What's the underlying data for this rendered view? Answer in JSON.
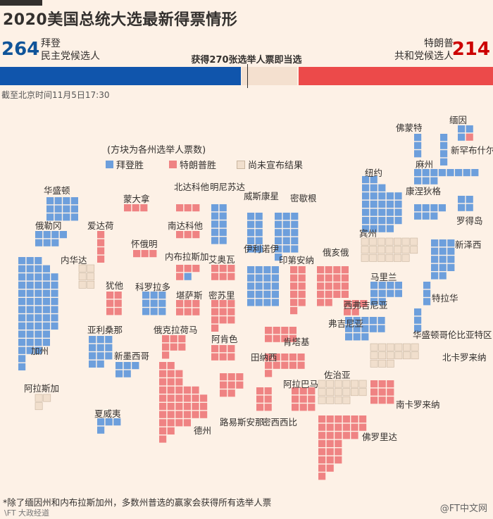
{
  "header": {
    "title": "2020美国总统大选最新得票情形",
    "biden_votes": "264",
    "biden_name": "拜登",
    "biden_party": "民主党候选人",
    "trump_votes": "214",
    "trump_name": "特朗普",
    "trump_party": "共和党候选人",
    "threshold": "获得270张选举人票即当选",
    "timestamp": "截至北京时间11月5日17:30"
  },
  "legend": {
    "note": "(方块为各州选举人票数)",
    "biden": "拜登胜",
    "trump": "特朗普胜",
    "undecided": "尚未宣布结果"
  },
  "colors": {
    "biden": "#6d9fdc",
    "trump": "#ef8383",
    "undecided": "#f1dfcd",
    "biden_bar": "#1055ac",
    "trump_bar": "#ec4a4a",
    "undecided_bar": "#f4e0cf"
  },
  "states": [
    {
      "name": "华盛顿",
      "votes": 12,
      "winner": "biden"
    },
    {
      "name": "俄勒冈",
      "votes": 7,
      "winner": "biden"
    },
    {
      "name": "加州",
      "votes": 55,
      "winner": "biden"
    },
    {
      "name": "内华达",
      "votes": 6,
      "winner": "undecided"
    },
    {
      "name": "爱达荷",
      "votes": 4,
      "winner": "trump"
    },
    {
      "name": "蒙大拿",
      "votes": 3,
      "winner": "trump"
    },
    {
      "name": "怀俄明",
      "votes": 3,
      "winner": "trump"
    },
    {
      "name": "犹他",
      "votes": 6,
      "winner": "trump"
    },
    {
      "name": "科罗拉多",
      "votes": 9,
      "winner": "biden"
    },
    {
      "name": "亚利桑那",
      "votes": 11,
      "winner": "biden"
    },
    {
      "name": "新墨西哥",
      "votes": 5,
      "winner": "biden"
    },
    {
      "name": "北达科他",
      "votes": 3,
      "winner": "trump"
    },
    {
      "name": "南达科他",
      "votes": 3,
      "winner": "trump"
    },
    {
      "name": "内布拉斯加",
      "votes": 5,
      "winner": "split"
    },
    {
      "name": "堪萨斯",
      "votes": 6,
      "winner": "trump"
    },
    {
      "name": "俄克拉荷马",
      "votes": 7,
      "winner": "trump"
    },
    {
      "name": "德州",
      "votes": 38,
      "winner": "trump"
    },
    {
      "name": "明尼苏达",
      "votes": 10,
      "winner": "biden"
    },
    {
      "name": "艾奥瓦",
      "votes": 6,
      "winner": "trump"
    },
    {
      "name": "密苏里",
      "votes": 10,
      "winner": "trump"
    },
    {
      "name": "阿肯色",
      "votes": 6,
      "winner": "trump"
    },
    {
      "name": "路易斯安那",
      "votes": 8,
      "winner": "trump"
    },
    {
      "name": "威斯康星",
      "votes": 10,
      "winner": "biden"
    },
    {
      "name": "伊利诺伊",
      "votes": 20,
      "winner": "biden"
    },
    {
      "name": "密歇根",
      "votes": 16,
      "winner": "biden"
    },
    {
      "name": "印第安纳",
      "votes": 11,
      "winner": "trump"
    },
    {
      "name": "俄亥俄",
      "votes": 18,
      "winner": "trump"
    },
    {
      "name": "肯塔基",
      "votes": 8,
      "winner": "trump"
    },
    {
      "name": "田纳西",
      "votes": 11,
      "winner": "trump"
    },
    {
      "name": "密西西比",
      "votes": 6,
      "winner": "trump"
    },
    {
      "name": "阿拉巴马",
      "votes": 9,
      "winner": "trump"
    },
    {
      "name": "佐治亚",
      "votes": 16,
      "winner": "undecided"
    },
    {
      "name": "佛罗里达",
      "votes": 29,
      "winner": "trump"
    },
    {
      "name": "南卡罗来纳",
      "votes": 9,
      "winner": "trump"
    },
    {
      "name": "北卡罗来纳",
      "votes": 15,
      "winner": "undecided"
    },
    {
      "name": "弗吉尼亚",
      "votes": 13,
      "winner": "biden"
    },
    {
      "name": "西弗吉尼亚",
      "votes": 5,
      "winner": "trump"
    },
    {
      "name": "宾州",
      "votes": 20,
      "winner": "undecided"
    },
    {
      "name": "纽约",
      "votes": 29,
      "winner": "biden"
    },
    {
      "name": "马里兰",
      "votes": 10,
      "winner": "biden"
    },
    {
      "name": "特拉华",
      "votes": 3,
      "winner": "biden"
    },
    {
      "name": "华盛顿哥伦比亚特区",
      "votes": 3,
      "winner": "biden"
    },
    {
      "name": "新泽西",
      "votes": 14,
      "winner": "biden"
    },
    {
      "name": "康涅狄格",
      "votes": 7,
      "winner": "biden"
    },
    {
      "name": "罗得岛",
      "votes": 4,
      "winner": "biden"
    },
    {
      "name": "麻州",
      "votes": 11,
      "winner": "biden"
    },
    {
      "name": "佛蒙特",
      "votes": 3,
      "winner": "biden"
    },
    {
      "name": "新罕布什尔",
      "votes": 4,
      "winner": "biden"
    },
    {
      "name": "缅因",
      "votes": 4,
      "winner": "split"
    },
    {
      "name": "阿拉斯加",
      "votes": 3,
      "winner": "undecided"
    },
    {
      "name": "夏威夷",
      "votes": 4,
      "winner": "biden"
    }
  ],
  "footnote": "*除了缅因州和内布拉斯加州，多数州普选的赢家会获得所有选举人票",
  "source": "\\FT 大政经道",
  "watermark": "@FT中文网",
  "chart_data": {
    "type": "tile-map",
    "title": "2020美国总统大选最新得票情形",
    "series": [
      {
        "name": "拜登胜",
        "value": 264
      },
      {
        "name": "特朗普胜",
        "value": 214
      },
      {
        "name": "尚未宣布结果",
        "value": 60
      }
    ],
    "threshold": 270,
    "total": 538
  }
}
